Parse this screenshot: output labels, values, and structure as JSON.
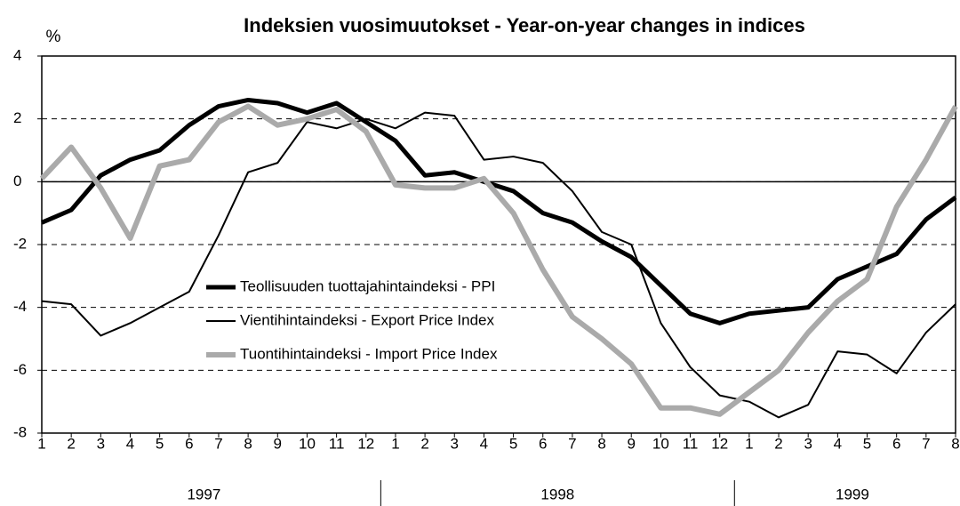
{
  "chart_data": {
    "type": "line",
    "title": "Indeksien vuosimuutokset - Year-on-year changes in indices",
    "y_label": "%",
    "categories": [
      "1",
      "2",
      "3",
      "4",
      "5",
      "6",
      "7",
      "8",
      "9",
      "10",
      "11",
      "12",
      "1",
      "2",
      "3",
      "4",
      "5",
      "6",
      "7",
      "8",
      "9",
      "10",
      "11",
      "12",
      "1",
      "2",
      "3",
      "4",
      "5",
      "6",
      "7",
      "8"
    ],
    "years": [
      "1997",
      "1998",
      "1999"
    ],
    "series": [
      {
        "name": "Teollisuuden tuottajahintaindeksi - PPI",
        "color": "#000000",
        "width": 5,
        "values": [
          -1.3,
          -0.9,
          0.2,
          0.7,
          1.0,
          1.8,
          2.4,
          2.6,
          2.5,
          2.2,
          2.5,
          1.9,
          1.3,
          0.2,
          0.3,
          0.0,
          -0.3,
          -1.0,
          -1.3,
          -1.9,
          -2.4,
          -3.3,
          -4.2,
          -4.5,
          -4.2,
          -4.1,
          -4.0,
          -3.1,
          -2.7,
          -2.3,
          -1.2,
          -0.5
        ]
      },
      {
        "name": "Vientihintaindeksi - Export Price Index",
        "color": "#000000",
        "width": 2,
        "values": [
          -3.8,
          -3.9,
          -4.9,
          -4.5,
          -4.0,
          -3.5,
          -1.7,
          0.3,
          0.6,
          1.9,
          1.7,
          2.0,
          1.7,
          2.2,
          2.1,
          0.7,
          0.8,
          0.6,
          -0.3,
          -1.6,
          -2.0,
          -4.5,
          -5.9,
          -6.8,
          -7.0,
          -7.5,
          -7.1,
          -5.4,
          -5.5,
          -6.1,
          -4.8,
          -3.9
        ]
      },
      {
        "name": "Tuontihintaindeksi - Import Price Index",
        "color": "#aaaaaa",
        "width": 6,
        "values": [
          0.1,
          1.1,
          -0.2,
          -1.8,
          0.5,
          0.7,
          1.9,
          2.4,
          1.8,
          2.0,
          2.3,
          1.6,
          -0.1,
          -0.2,
          -0.2,
          0.1,
          -1.0,
          -2.8,
          -4.3,
          -5.0,
          -5.8,
          -7.2,
          -7.2,
          -7.4,
          -6.7,
          -6.0,
          -4.8,
          -3.8,
          -3.1,
          -0.8,
          0.7,
          2.4
        ]
      }
    ],
    "ylim": [
      -8,
      4
    ],
    "yticks": [
      4,
      2,
      0,
      -2,
      -4,
      -6,
      -8
    ],
    "grid": true,
    "legend": "left"
  }
}
